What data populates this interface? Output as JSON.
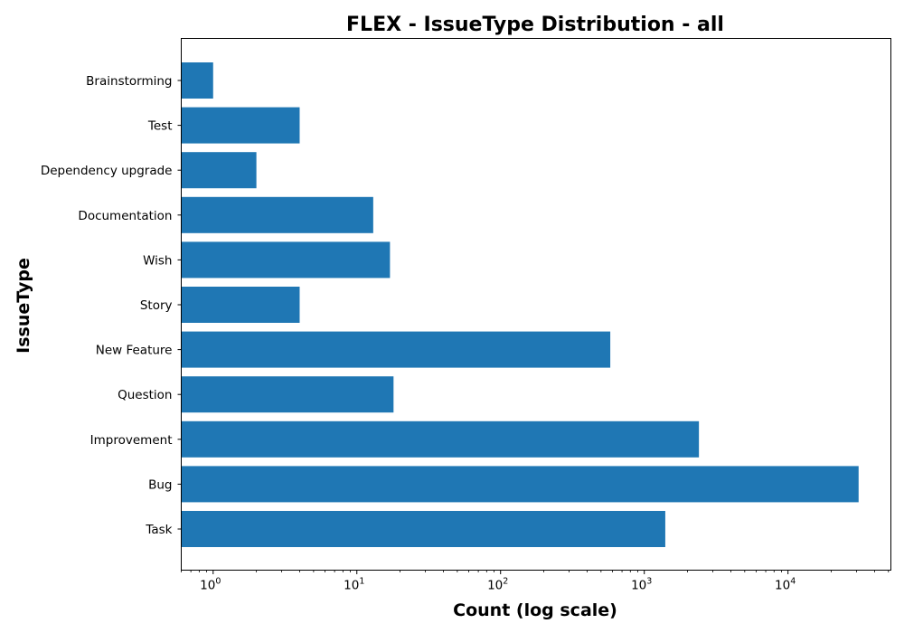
{
  "chart_data": {
    "type": "bar",
    "orientation": "horizontal",
    "title": "FLEX - IssueType Distribution - all",
    "xlabel": "Count (log scale)",
    "ylabel": "IssueType",
    "x_scale": "log",
    "xlim": [
      0.6,
      52000
    ],
    "x_ticks": [
      {
        "value": 1,
        "base": "10",
        "exp": "0"
      },
      {
        "value": 10,
        "base": "10",
        "exp": "1"
      },
      {
        "value": 100,
        "base": "10",
        "exp": "2"
      },
      {
        "value": 1000,
        "base": "10",
        "exp": "3"
      },
      {
        "value": 10000,
        "base": "10",
        "exp": "4"
      }
    ],
    "categories": [
      "Brainstorming",
      "Test",
      "Dependency upgrade",
      "Documentation",
      "Wish",
      "Story",
      "New Feature",
      "Question",
      "Improvement",
      "Bug",
      "Task"
    ],
    "values": [
      1,
      4,
      2,
      13,
      17,
      4,
      580,
      18,
      2400,
      31000,
      1400
    ],
    "bar_color": "#1f77b4",
    "grid": false,
    "legend": "none"
  }
}
